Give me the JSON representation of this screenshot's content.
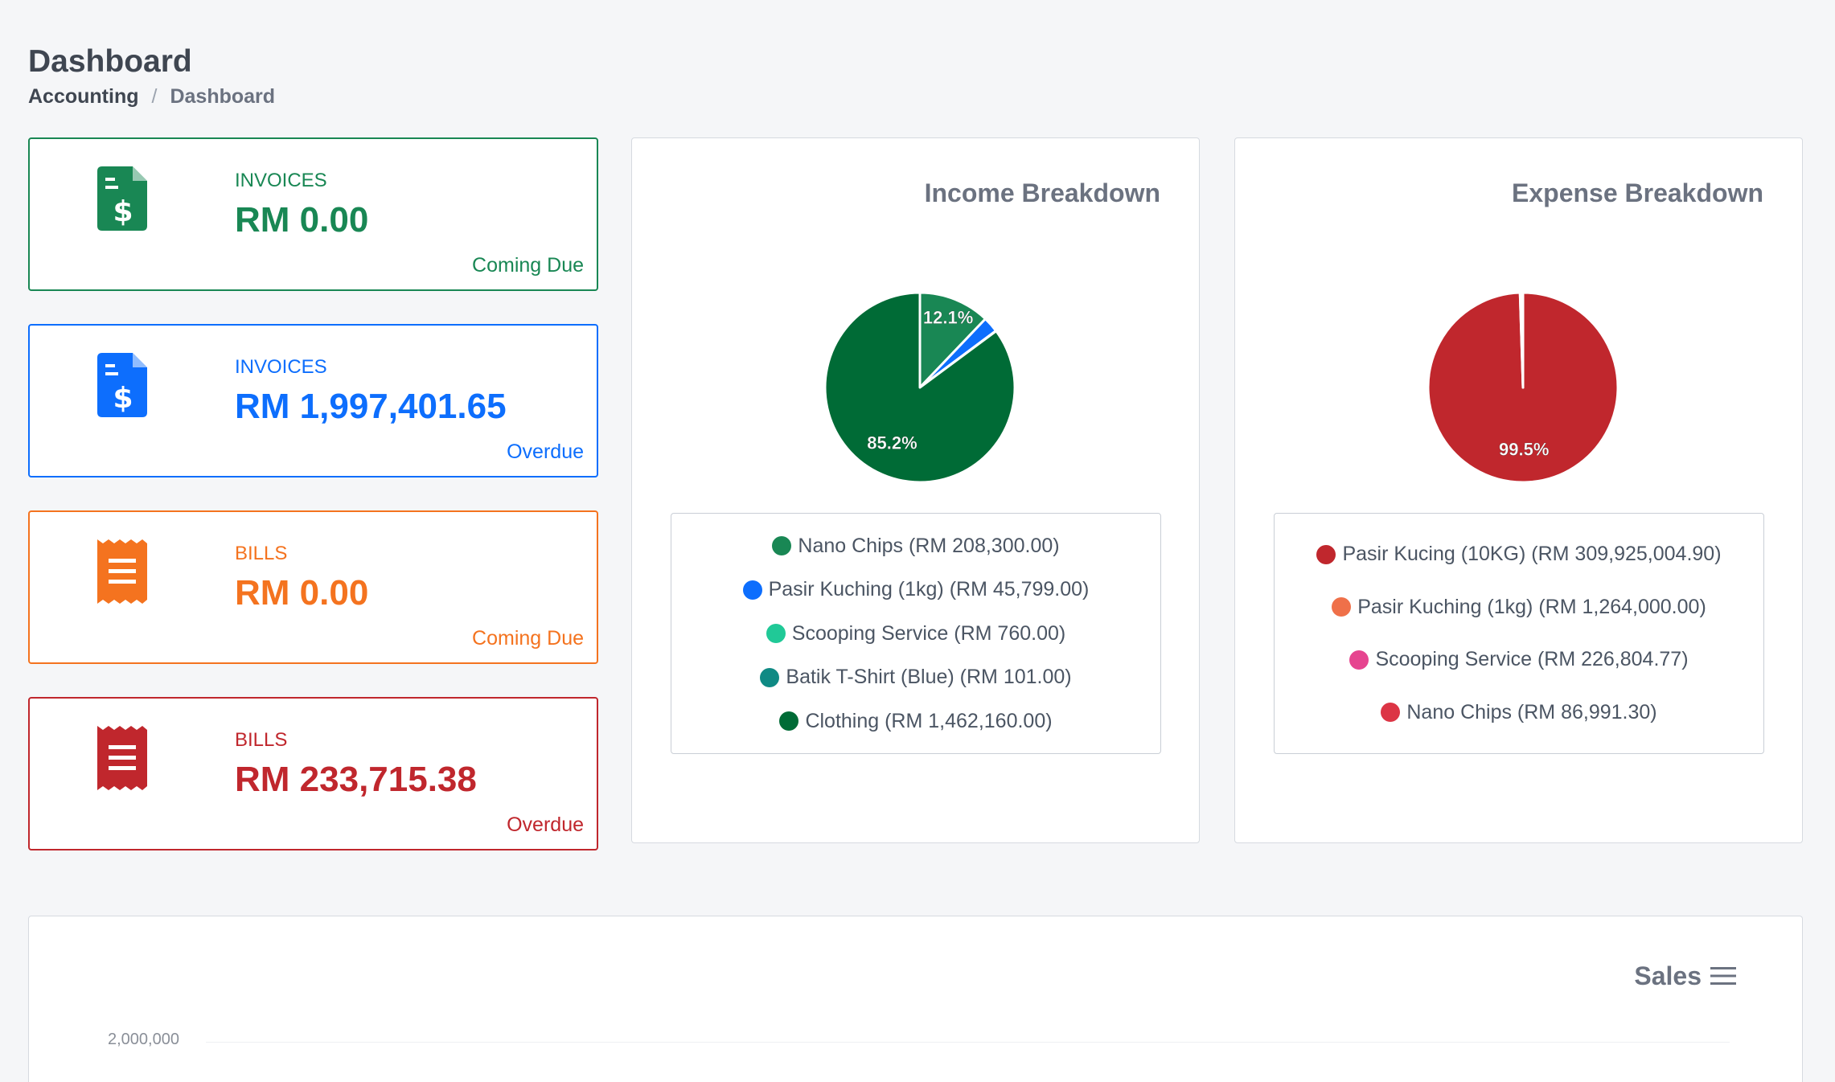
{
  "header": {
    "title": "Dashboard",
    "breadcrumb": {
      "root": "Accounting",
      "separator": "/",
      "current": "Dashboard"
    }
  },
  "cards": [
    {
      "icon": "invoice-document-icon",
      "label": "INVOICES",
      "amount": "RM 0.00",
      "status": "Coming Due",
      "color": "#198754"
    },
    {
      "icon": "invoice-document-icon",
      "label": "INVOICES",
      "amount": "RM 1,997,401.65",
      "status": "Overdue",
      "color": "#0d6efd"
    },
    {
      "icon": "bill-receipt-icon",
      "label": "BILLS",
      "amount": "RM 0.00",
      "status": "Coming Due",
      "color": "#f4731f"
    },
    {
      "icon": "bill-receipt-icon",
      "label": "BILLS",
      "amount": "RM 233,715.38",
      "status": "Overdue",
      "color": "#c0272d"
    }
  ],
  "income": {
    "title": "Income Breakdown",
    "legend": [
      {
        "label": "Nano Chips (RM 208,300.00)",
        "color": "#198754"
      },
      {
        "label": "Pasir Kuching (1kg) (RM 45,799.00)",
        "color": "#0d6efd"
      },
      {
        "label": "Scooping Service (RM 760.00)",
        "color": "#20c997"
      },
      {
        "label": "Batik T-Shirt (Blue) (RM 101.00)",
        "color": "#0f8a84"
      },
      {
        "label": "Clothing (RM 1,462,160.00)",
        "color": "#006b36"
      }
    ]
  },
  "expense": {
    "title": "Expense Breakdown",
    "legend": [
      {
        "label": "Pasir Kucing (10KG) (RM 309,925,004.90)",
        "color": "#c0272d"
      },
      {
        "label": "Pasir Kuching (1kg) (RM 1,264,000.00)",
        "color": "#ef7049"
      },
      {
        "label": "Scooping Service (RM 226,804.77)",
        "color": "#e6448f"
      },
      {
        "label": "Nano Chips (RM 86,991.30)",
        "color": "#dc3545"
      }
    ]
  },
  "chart_data": [
    {
      "type": "pie",
      "title": "Income Breakdown",
      "categories": [
        "Nano Chips",
        "Pasir Kuching (1kg)",
        "Scooping Service",
        "Batik T-Shirt (Blue)",
        "Clothing"
      ],
      "values": [
        208300.0,
        45799.0,
        760.0,
        101.0,
        1462160.0
      ],
      "colors": [
        "#198754",
        "#0d6efd",
        "#20c997",
        "#0f8a84",
        "#006b36"
      ],
      "slice_labels": [
        "12.1%",
        "",
        "",
        "",
        "85.2%"
      ],
      "legend": "bottom"
    },
    {
      "type": "pie",
      "title": "Expense Breakdown",
      "categories": [
        "Pasir Kucing (10KG)",
        "Pasir Kuching (1kg)",
        "Scooping Service",
        "Nano Chips"
      ],
      "values": [
        309925004.9,
        1264000.0,
        226804.77,
        86991.3
      ],
      "colors": [
        "#c0272d",
        "#ef7049",
        "#e6448f",
        "#dc3545"
      ],
      "slice_labels": [
        "99.5%",
        "",
        "",
        ""
      ],
      "legend": "bottom"
    },
    {
      "type": "line",
      "title": "Sales",
      "y_ticks": [
        "2,000,000"
      ]
    }
  ]
}
